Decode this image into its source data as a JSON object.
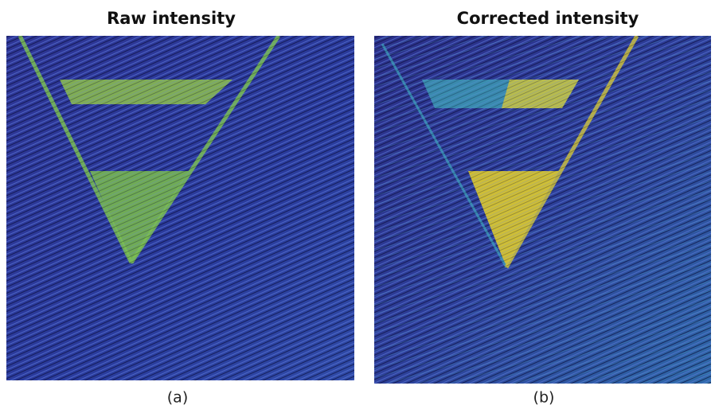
{
  "panels": [
    {
      "title": "Raw intensity",
      "caption": "(a)"
    },
    {
      "title": "Corrected intensity",
      "caption": "(b)"
    }
  ]
}
